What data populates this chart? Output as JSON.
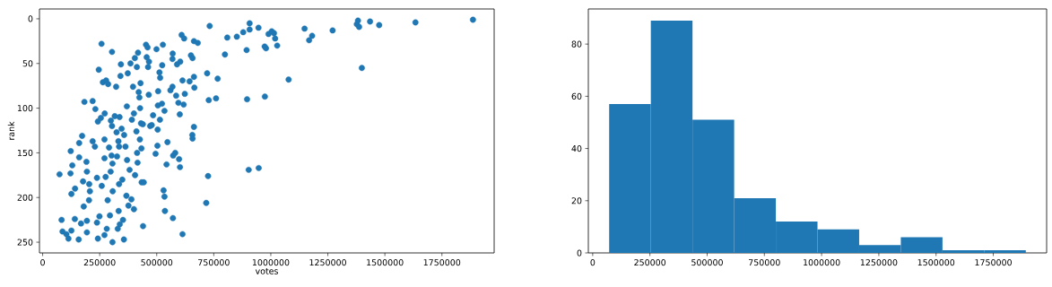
{
  "chart_data": [
    {
      "type": "scatter",
      "xlabel": "votes",
      "ylabel": "rank",
      "color": "#1f77b4",
      "marker": "circle",
      "xlim": [
        -14000,
        1979000
      ],
      "ylim": [
        262,
        -11
      ],
      "xticks": [
        0,
        250000,
        500000,
        750000,
        1000000,
        1250000,
        1500000,
        1750000
      ],
      "yticks": [
        0,
        50,
        100,
        150,
        200,
        250
      ],
      "x": [
        74000,
        83000,
        87000,
        104000,
        113000,
        123000,
        130000,
        122000,
        126000,
        126000,
        141000,
        142000,
        160000,
        160000,
        158000,
        168000,
        173000,
        177000,
        180000,
        183000,
        192000,
        194000,
        194000,
        194000,
        203000,
        204000,
        207000,
        219000,
        219000,
        229000,
        231000,
        238000,
        238000,
        242000,
        242000,
        246000,
        249000,
        255000,
        258000,
        259000,
        264000,
        271000,
        271000,
        271000,
        272000,
        276000,
        278000,
        281000,
        285000,
        287000,
        291000,
        295000,
        298000,
        299000,
        302000,
        304000,
        306000,
        304000,
        306000,
        307000,
        316000,
        322000,
        324000,
        326000,
        329000,
        332000,
        333000,
        335000,
        335000,
        337000,
        338000,
        341000,
        343000,
        346000,
        349000,
        352000,
        356000,
        357000,
        363000,
        367000,
        370000,
        373000,
        369000,
        376000,
        381000,
        385000,
        389000,
        391000,
        396000,
        400000,
        400000,
        404000,
        405000,
        411000,
        413000,
        414000,
        416000,
        418000,
        421000,
        424000,
        426000,
        427000,
        429000,
        431000,
        433000,
        434000,
        439000,
        440000,
        443000,
        453000,
        456000,
        460000,
        462000,
        466000,
        465000,
        471000,
        478000,
        484000,
        495000,
        499000,
        504000,
        503000,
        506000,
        505000,
        512000,
        514000,
        515000,
        523000,
        524000,
        527000,
        530000,
        534000,
        534000,
        536000,
        543000,
        547000,
        560000,
        569000,
        570000,
        571000,
        569000,
        572000,
        581000,
        585000,
        589000,
        595000,
        598000,
        601000,
        602000,
        603000,
        609000,
        613000,
        613000,
        618000,
        620000,
        623000,
        644000,
        650000,
        656000,
        657000,
        657000,
        663000,
        663000,
        663000,
        665000,
        680000,
        721000,
        717000,
        725000,
        728000,
        732000,
        760000,
        767000,
        799000,
        809000,
        851000,
        879000,
        894000,
        896000,
        903000,
        907000,
        907000,
        947000,
        946000,
        974000,
        973000,
        979000,
        990000,
        1004000,
        1014000,
        1019000,
        1028000,
        1078000,
        1148000,
        1168000,
        1181000,
        1271000,
        1377000,
        1382000,
        1387000,
        1399000,
        1435000,
        1475000,
        1634000,
        1886000
      ],
      "values": [
        174,
        225,
        238,
        241,
        246,
        148,
        164,
        173,
        196,
        237,
        224,
        190,
        155,
        139,
        247,
        229,
        131,
        182,
        210,
        93,
        160,
        171,
        226,
        239,
        203,
        185,
        193,
        137,
        92,
        143,
        101,
        228,
        178,
        246,
        115,
        57,
        221,
        111,
        28,
        187,
        71,
        135,
        156,
        242,
        106,
        177,
        69,
        235,
        203,
        73,
        144,
        220,
        171,
        114,
        153,
        37,
        250,
        120,
        162,
        193,
        109,
        76,
        127,
        154,
        235,
        137,
        215,
        185,
        143,
        110,
        230,
        64,
        51,
        123,
        180,
        225,
        247,
        130,
        143,
        198,
        158,
        61,
        98,
        209,
        169,
        50,
        202,
        113,
        76,
        106,
        213,
        44,
        175,
        126,
        54,
        150,
        161,
        38,
        82,
        88,
        135,
        100,
        72,
        117,
        145,
        183,
        118,
        232,
        183,
        29,
        43,
        32,
        54,
        48,
        85,
        120,
        119,
        108,
        151,
        34,
        124,
        142,
        81,
        97,
        60,
        113,
        66,
        95,
        52,
        29,
        192,
        103,
        199,
        215,
        163,
        138,
        80,
        76,
        39,
        223,
        45,
        153,
        150,
        86,
        51,
        94,
        157,
        107,
        166,
        48,
        18,
        69,
        241,
        96,
        22,
        84,
        70,
        41,
        130,
        134,
        44,
        121,
        25,
        65,
        77,
        27,
        61,
        206,
        176,
        91,
        8,
        89,
        67,
        40,
        21,
        20,
        15,
        35,
        90,
        169,
        5,
        12,
        167,
        10,
        87,
        31,
        33,
        17,
        14,
        16,
        22,
        30,
        68,
        11,
        24,
        19,
        13,
        6,
        2,
        9,
        55,
        3,
        7,
        4,
        1
      ]
    },
    {
      "type": "histogram",
      "color": "#1f77b4",
      "bins": [
        72000,
        254000,
        436000,
        618000,
        800000,
        982000,
        1164000,
        1346000,
        1528000,
        1710000,
        1892000
      ],
      "values": [
        57,
        89,
        51,
        21,
        12,
        9,
        3,
        6,
        1,
        1
      ],
      "xlim": [
        -19000,
        1983000
      ],
      "ylim": [
        0,
        93.45
      ],
      "xticks": [
        0,
        250000,
        500000,
        750000,
        1000000,
        1250000,
        1500000,
        1750000
      ],
      "yticks": [
        0,
        20,
        40,
        60,
        80
      ]
    }
  ]
}
